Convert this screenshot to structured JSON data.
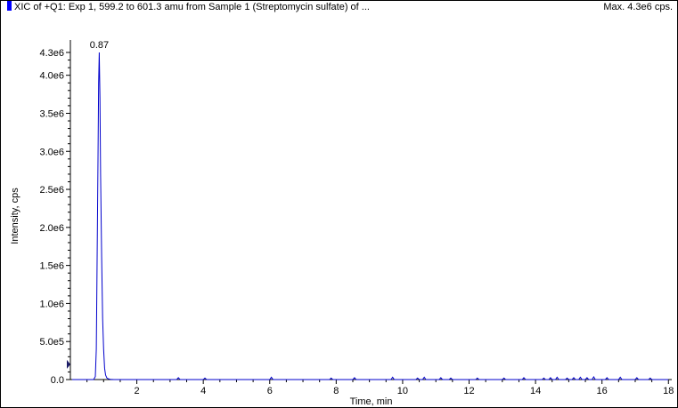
{
  "header": {
    "title": "XIC of +Q1: Exp 1, 599.2 to 601.3 amu from Sample 1 (Streptomycin sulfate) of ...",
    "max_label": "Max. 4.3e6 cps."
  },
  "colors": {
    "trace": "#0000cc",
    "title_marker": "#0000ff",
    "axis": "#000000",
    "cursor_marker": "#1a1a66"
  },
  "chart_data": {
    "type": "line",
    "title": "XIC of +Q1: Exp 1, 599.2 to 601.3 amu from Sample 1 (Streptomycin sulfate) of ...",
    "xlabel": "Time, min",
    "ylabel": "Intensity, cps",
    "xlim": [
      0,
      18.1
    ],
    "ylim": [
      0,
      4300000
    ],
    "x_ticks": [
      2,
      4,
      6,
      8,
      10,
      12,
      14,
      16,
      18
    ],
    "x_tick_labels": [
      "2",
      "4",
      "6",
      "8",
      "10",
      "12",
      "14",
      "16",
      "18"
    ],
    "y_ticks": [
      0,
      500000,
      1000000,
      1500000,
      2000000,
      2500000,
      3000000,
      3500000,
      4000000,
      4300000
    ],
    "y_tick_labels": [
      "0.0",
      "5.0e5",
      "1.0e6",
      "1.5e6",
      "2.0e6",
      "2.5e6",
      "3.0e6",
      "3.5e6",
      "4.0e6",
      "4.3e6"
    ],
    "grid": false,
    "peak_annotation": {
      "x": 0.87,
      "y": 4300000,
      "label": "0.87"
    },
    "series": [
      {
        "x": [
          0.05,
          0.3,
          0.5,
          0.7,
          0.75,
          0.78,
          0.8,
          0.83,
          0.85,
          0.87,
          0.89,
          0.91,
          0.94,
          0.97,
          1.0,
          1.03,
          1.06,
          1.1,
          1.15,
          1.2,
          1.3,
          1.5,
          2.0,
          3.2,
          3.25,
          3.3,
          3.5,
          4.0,
          4.05,
          4.1,
          6.0,
          6.05,
          6.1,
          7.8,
          7.85,
          7.9,
          8.5,
          8.55,
          8.6,
          9.65,
          9.7,
          9.75,
          10.4,
          10.45,
          10.5,
          10.6,
          10.65,
          10.7,
          11.1,
          11.15,
          11.2,
          11.4,
          11.45,
          11.5,
          12.2,
          12.25,
          12.3,
          13.0,
          13.05,
          13.1,
          13.6,
          13.65,
          13.7,
          14.2,
          14.25,
          14.3,
          14.4,
          14.45,
          14.5,
          14.6,
          14.65,
          14.7,
          14.9,
          14.95,
          15.0,
          15.1,
          15.15,
          15.2,
          15.3,
          15.35,
          15.4,
          15.5,
          15.55,
          15.6,
          15.7,
          15.75,
          15.8,
          16.1,
          16.15,
          16.2,
          16.5,
          16.55,
          16.6,
          17.0,
          17.05,
          17.1,
          17.4,
          17.45,
          17.5,
          18.0
        ],
        "values": [
          0,
          0,
          0,
          0,
          40000,
          400000,
          1300000,
          2900000,
          3900000,
          4300000,
          3700000,
          2700000,
          1600000,
          800000,
          400000,
          150000,
          60000,
          20000,
          8000,
          3000,
          0,
          0,
          0,
          0,
          25000,
          0,
          0,
          0,
          20000,
          0,
          0,
          30000,
          0,
          0,
          20000,
          0,
          0,
          25000,
          0,
          0,
          30000,
          0,
          0,
          20000,
          0,
          0,
          30000,
          0,
          0,
          25000,
          0,
          0,
          20000,
          0,
          0,
          20000,
          0,
          0,
          20000,
          0,
          0,
          25000,
          0,
          0,
          20000,
          0,
          0,
          25000,
          0,
          0,
          30000,
          0,
          0,
          20000,
          0,
          0,
          25000,
          0,
          0,
          30000,
          0,
          0,
          25000,
          0,
          0,
          35000,
          0,
          0,
          25000,
          0,
          0,
          30000,
          0,
          0,
          25000,
          0,
          0,
          20000,
          0,
          0
        ]
      }
    ],
    "cursor_marker_y": 200000
  }
}
